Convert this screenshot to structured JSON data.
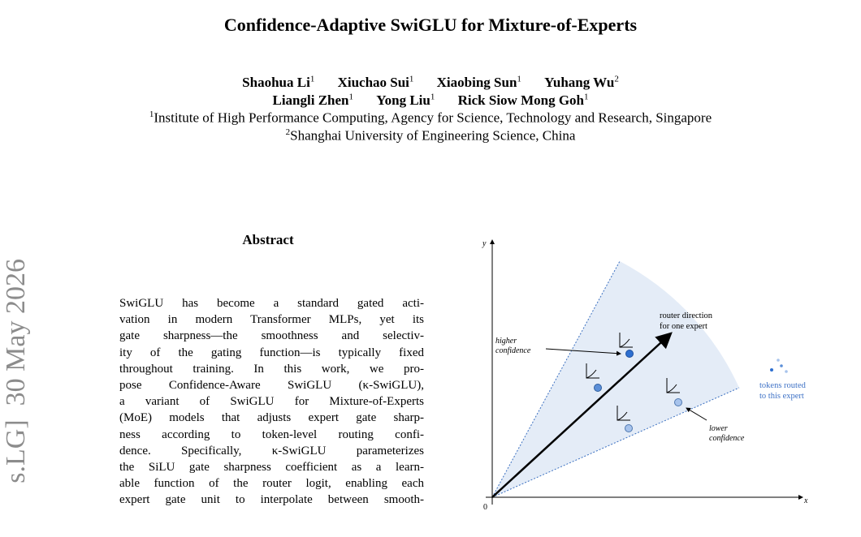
{
  "header": {
    "title": "Confidence-Adaptive SwiGLU for Mixture-of-Experts",
    "authors": [
      {
        "name": "Shaohua Li",
        "affiliation": "1"
      },
      {
        "name": "Xiuchao Sui",
        "affiliation": "1"
      },
      {
        "name": "Xiaobing Sun",
        "affiliation": "1"
      },
      {
        "name": "Yuhang Wu",
        "affiliation": "2"
      },
      {
        "name": "Liangli Zhen",
        "affiliation": "1"
      },
      {
        "name": "Yong Liu",
        "affiliation": "1"
      },
      {
        "name": "Rick Siow Mong Goh",
        "affiliation": "1"
      }
    ],
    "affiliations": [
      {
        "mark": "1",
        "text": "Institute of High Performance Computing, Agency for Science, Technology and Research, Singapore"
      },
      {
        "mark": "2",
        "text": "Shanghai University of Engineering Science, China"
      }
    ]
  },
  "sidebar": "s.LG]  30 May 2026",
  "abstract": {
    "heading": "Abstract",
    "lines": [
      "SwiGLU has become a standard gated acti-",
      "vation in modern Transformer MLPs, yet its",
      "gate sharpness—the smoothness and selectiv-",
      "ity of the gating function—is typically fixed",
      "throughout training. In this work, we pro-",
      "pose Confidence-Aware SwiGLU (κ-SwiGLU),",
      "a variant of SwiGLU for Mixture-of-Experts",
      "(MoE) models that adjusts expert gate sharp-",
      "ness according to token-level routing confi-",
      "dence. Specifically, κ-SwiGLU parameterizes",
      "the SiLU gate sharpness coefficient as a learn-",
      "able function of the router logit, enabling each",
      "expert gate unit to interpolate between smooth-"
    ]
  },
  "figure": {
    "y_axis": "y",
    "x_axis": "x",
    "origin": "0",
    "router_label": [
      "router direction",
      "for one expert"
    ],
    "higher_label": [
      "higher",
      "confidence"
    ],
    "lower_label": [
      "lower",
      "confidence"
    ],
    "legend_label": [
      "tokens routed",
      "to this expert"
    ]
  }
}
